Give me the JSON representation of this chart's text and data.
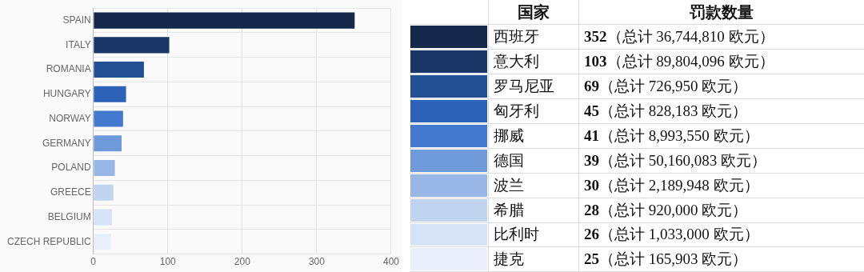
{
  "chart_data": [
    {
      "type": "bar",
      "orientation": "horizontal",
      "categories": [
        "SPAIN",
        "ITALY",
        "ROMANIA",
        "HUNGARY",
        "NORWAY",
        "GERMANY",
        "POLAND",
        "GREECE",
        "BELGIUM",
        "CZECH REPUBLIC"
      ],
      "values": [
        352,
        103,
        69,
        45,
        41,
        39,
        30,
        28,
        26,
        25
      ],
      "colors": [
        "#15284b",
        "#1a3668",
        "#234f94",
        "#2c62b8",
        "#4479d0",
        "#6e9ad9",
        "#98b7e6",
        "#c0d4f0",
        "#d6e3f6",
        "#e9f0fb"
      ],
      "xlim": [
        0,
        400
      ],
      "xticks": [
        0,
        100,
        200,
        300,
        400
      ],
      "grid": true,
      "legend": false
    },
    {
      "type": "other",
      "annotations": [
        "国家",
        "罚款数量"
      ],
      "categories": [
        "西班牙",
        "意大利",
        "罗马尼亚",
        "匈牙利",
        "挪威",
        "德国",
        "波兰",
        "希腊",
        "比利时",
        "捷克"
      ],
      "values": [
        352,
        103,
        69,
        45,
        41,
        39,
        30,
        28,
        26,
        25
      ],
      "colors": [
        "#15284b",
        "#1a3668",
        "#234f94",
        "#2c62b8",
        "#4479d0",
        "#6e9ad9",
        "#98b7e6",
        "#c0d4f0",
        "#d6e3f6",
        "#e9f0fb"
      ],
      "value_labels": [
        "352（总计 36,744,810 欧元）",
        "103（总计 89,804,096 欧元）",
        "69（总计 726,950 欧元）",
        "45（总计 828,183 欧元）",
        "41（总计 8,993,550 欧元）",
        "39（总计 50,160,083 欧元）",
        "30（总计 2,189,948 欧元）",
        "28（总计 920,000 欧元）",
        "26（总计 1,033,000 欧元）",
        "25（总计 165,903 欧元）"
      ]
    }
  ]
}
